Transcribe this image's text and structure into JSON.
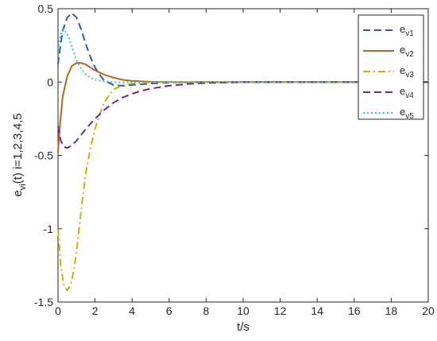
{
  "chart_data": {
    "type": "line",
    "xlabel": "t/s",
    "ylabel_main": "e",
    "ylabel_sub": "vi",
    "ylabel_rest": "(t) i=1,2,3,4,5",
    "xlim": [
      0,
      20
    ],
    "ylim": [
      -1.5,
      0.5
    ],
    "xticks": [
      0,
      2,
      4,
      6,
      8,
      10,
      12,
      14,
      16,
      18,
      20
    ],
    "yticks": [
      -1.5,
      -1,
      -0.5,
      0,
      0.5
    ],
    "grid": false,
    "legend_position": "top-right",
    "series": [
      {
        "name": "ev1",
        "label_main": "e",
        "label_sub": "v1",
        "color": "#2B59C3",
        "dash": "dash",
        "x": [
          0,
          0.1,
          0.25,
          0.5,
          0.75,
          1,
          1.25,
          1.5,
          1.75,
          2,
          2.25,
          2.5,
          3,
          3.5,
          4,
          5,
          6,
          8,
          20
        ],
        "y": [
          0.12,
          0.22,
          0.35,
          0.44,
          0.47,
          0.44,
          0.36,
          0.26,
          0.17,
          0.1,
          0.05,
          0.01,
          -0.02,
          -0.025,
          -0.02,
          -0.01,
          -0.003,
          0,
          0
        ]
      },
      {
        "name": "ev2",
        "label_main": "e",
        "label_sub": "v2",
        "color": "#B8651A",
        "dash": "solid",
        "x": [
          0,
          0.1,
          0.25,
          0.5,
          0.75,
          1,
          1.25,
          1.5,
          1.75,
          2,
          2.5,
          3,
          3.5,
          4,
          5,
          6,
          8,
          20
        ],
        "y": [
          -0.48,
          -0.3,
          -0.1,
          0.04,
          0.11,
          0.13,
          0.13,
          0.12,
          0.1,
          0.08,
          0.05,
          0.03,
          0.015,
          0.008,
          0.002,
          0,
          0,
          0
        ]
      },
      {
        "name": "ev3",
        "label_main": "e",
        "label_sub": "v3",
        "color": "#C8B400",
        "dash": "dashdot",
        "x": [
          0,
          0.15,
          0.3,
          0.5,
          0.7,
          0.9,
          1.1,
          1.3,
          1.5,
          1.75,
          2,
          2.25,
          2.5,
          2.75,
          3,
          3.5,
          4,
          5,
          6,
          8,
          20
        ],
        "y": [
          -1.0,
          -1.25,
          -1.38,
          -1.42,
          -1.38,
          -1.25,
          -1.05,
          -0.82,
          -0.62,
          -0.45,
          -0.32,
          -0.22,
          -0.14,
          -0.09,
          -0.05,
          -0.02,
          -0.01,
          -0.002,
          0,
          0,
          0
        ]
      },
      {
        "name": "ev4",
        "label_main": "e",
        "label_sub": "v4",
        "color": "#6A2C8E",
        "dash": "dash",
        "x": [
          0,
          0.15,
          0.3,
          0.5,
          0.75,
          1,
          1.25,
          1.5,
          2,
          2.5,
          3,
          3.5,
          4,
          4.5,
          5,
          6,
          7,
          8,
          10,
          20
        ],
        "y": [
          -0.3,
          -0.4,
          -0.44,
          -0.45,
          -0.43,
          -0.4,
          -0.36,
          -0.32,
          -0.25,
          -0.19,
          -0.14,
          -0.105,
          -0.08,
          -0.06,
          -0.045,
          -0.025,
          -0.013,
          -0.006,
          -0.001,
          0
        ]
      },
      {
        "name": "ev5",
        "label_main": "e",
        "label_sub": "v5",
        "color": "#2EC4E8",
        "dash": "dot",
        "x": [
          0,
          0.1,
          0.25,
          0.5,
          0.75,
          1,
          1.25,
          1.5,
          1.75,
          2,
          2.5,
          3,
          3.5,
          4,
          5,
          6,
          20
        ],
        "y": [
          0.22,
          0.3,
          0.36,
          0.33,
          0.24,
          0.15,
          0.09,
          0.05,
          0.03,
          0.015,
          0.005,
          0,
          -0.002,
          -0.001,
          0,
          0,
          0
        ]
      }
    ]
  }
}
